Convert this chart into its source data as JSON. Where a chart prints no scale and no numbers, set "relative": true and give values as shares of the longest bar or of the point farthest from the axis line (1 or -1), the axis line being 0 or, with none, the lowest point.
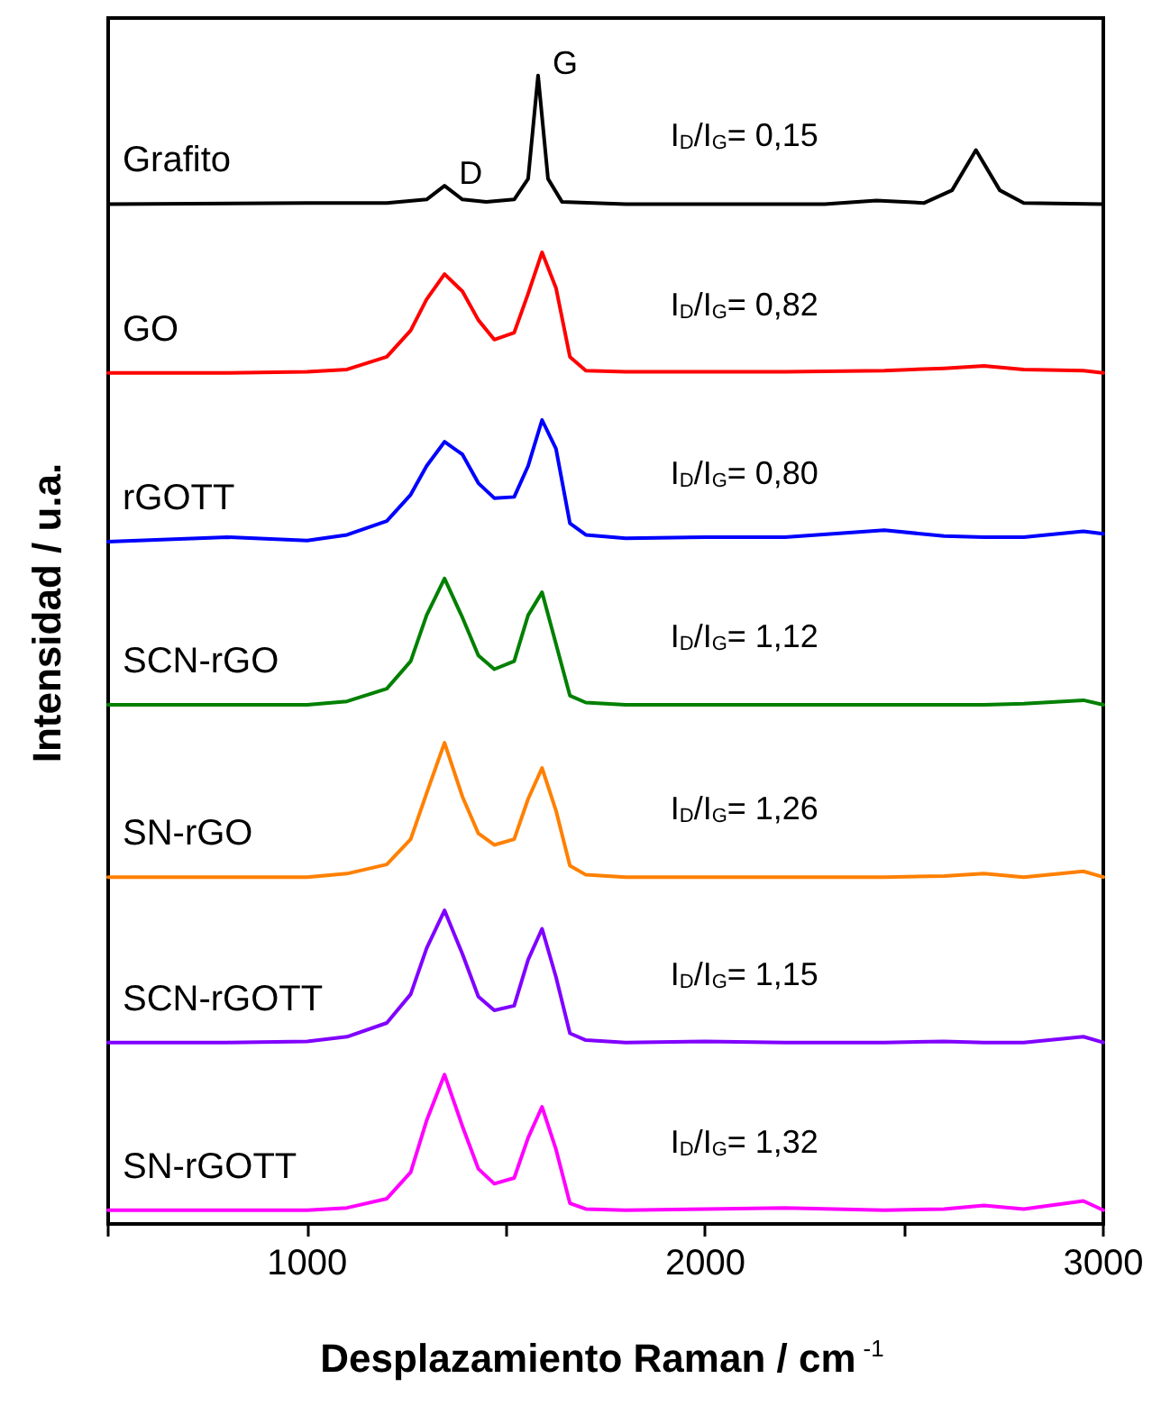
{
  "chart_data": {
    "type": "line",
    "relative": true,
    "xlabel": "Desplazamiento Raman / cm$^{-1}$",
    "ylabel": "Intensidad / u.a.",
    "xlim": [
      500,
      3000
    ],
    "xticks": [
      {
        "value": 500,
        "label": null
      },
      1000,
      {
        "value": 1500,
        "label": null
      },
      2000,
      {
        "value": 2500,
        "label": null
      },
      3000
    ],
    "x": [
      500,
      800,
      1000,
      1100,
      1200,
      1260,
      1300,
      1345,
      1390,
      1430,
      1470,
      1520,
      1555,
      1590,
      1625,
      1660,
      1700,
      1800,
      2000,
      2200,
      2450,
      2600,
      2700,
      2800,
      2950,
      3000
    ],
    "legend": false,
    "grid": false,
    "marker": "none",
    "line_style": "solid",
    "series": [
      {
        "name": "Grafito",
        "color": "#000000",
        "x": [
          500,
          1000,
          1200,
          1300,
          1345,
          1390,
          1450,
          1520,
          1555,
          1580,
          1605,
          1640,
          1800,
          2000,
          2300,
          2430,
          2550,
          2620,
          2680,
          2740,
          2800,
          3000
        ],
        "values": [
          0.888,
          0.889,
          0.889,
          0.892,
          0.904,
          0.892,
          0.89,
          0.892,
          0.91,
          1.0,
          0.91,
          0.89,
          0.888,
          0.888,
          0.888,
          0.891,
          0.889,
          0.9,
          0.935,
          0.9,
          0.889,
          0.888
        ]
      },
      {
        "name": "GO",
        "color": "#ff0000",
        "values": [
          0.741,
          0.741,
          0.742,
          0.744,
          0.755,
          0.778,
          0.805,
          0.827,
          0.812,
          0.787,
          0.77,
          0.776,
          0.81,
          0.846,
          0.815,
          0.755,
          0.743,
          0.742,
          0.742,
          0.742,
          0.743,
          0.745,
          0.747,
          0.744,
          0.743,
          0.741
        ]
      },
      {
        "name": "rGOTT",
        "color": "#0000ff",
        "values": [
          0.594,
          0.598,
          0.595,
          0.6,
          0.612,
          0.635,
          0.66,
          0.681,
          0.67,
          0.645,
          0.632,
          0.633,
          0.66,
          0.7,
          0.675,
          0.61,
          0.6,
          0.597,
          0.598,
          0.598,
          0.604,
          0.599,
          0.598,
          0.598,
          0.603,
          0.601
        ]
      },
      {
        "name": "SCN-rGO",
        "color": "#008000",
        "values": [
          0.452,
          0.452,
          0.452,
          0.455,
          0.466,
          0.49,
          0.53,
          0.562,
          0.528,
          0.495,
          0.483,
          0.49,
          0.53,
          0.55,
          0.505,
          0.46,
          0.454,
          0.452,
          0.452,
          0.452,
          0.452,
          0.452,
          0.452,
          0.453,
          0.456,
          0.452
        ]
      },
      {
        "name": "SN-rGO",
        "color": "#ff8000",
        "values": [
          0.302,
          0.302,
          0.302,
          0.305,
          0.313,
          0.335,
          0.375,
          0.419,
          0.372,
          0.34,
          0.33,
          0.335,
          0.37,
          0.397,
          0.36,
          0.312,
          0.304,
          0.302,
          0.302,
          0.302,
          0.302,
          0.303,
          0.305,
          0.302,
          0.307,
          0.302
        ]
      },
      {
        "name": "SCN-rGOTT",
        "color": "#8000ff",
        "values": [
          0.158,
          0.158,
          0.159,
          0.163,
          0.175,
          0.2,
          0.24,
          0.273,
          0.235,
          0.198,
          0.186,
          0.19,
          0.23,
          0.257,
          0.215,
          0.166,
          0.16,
          0.158,
          0.159,
          0.158,
          0.158,
          0.159,
          0.158,
          0.158,
          0.163,
          0.158
        ]
      },
      {
        "name": "SN-rGOTT",
        "color": "#ff00ff",
        "values": [
          0.012,
          0.012,
          0.012,
          0.014,
          0.022,
          0.045,
          0.09,
          0.13,
          0.085,
          0.048,
          0.035,
          0.04,
          0.075,
          0.102,
          0.065,
          0.018,
          0.013,
          0.012,
          0.013,
          0.014,
          0.012,
          0.013,
          0.016,
          0.013,
          0.02,
          0.012
        ]
      }
    ],
    "annotations": [
      {
        "text": "D",
        "x": 1345,
        "y": 0.904
      },
      {
        "text": "G",
        "x": 1580,
        "y": 1.0
      },
      "I$_{D}$/I$_{G}$= 0,15",
      "I$_{D}$/I$_{G}$= 0,82",
      "I$_{D}$/I$_{G}$= 0,80",
      "I$_{D}$/I$_{G}$= 1,12",
      "I$_{D}$/I$_{G}$= 1,26",
      "I$_{D}$/I$_{G}$= 1,15",
      "I$_{D}$/I$_{G}$= 1,32"
    ]
  }
}
